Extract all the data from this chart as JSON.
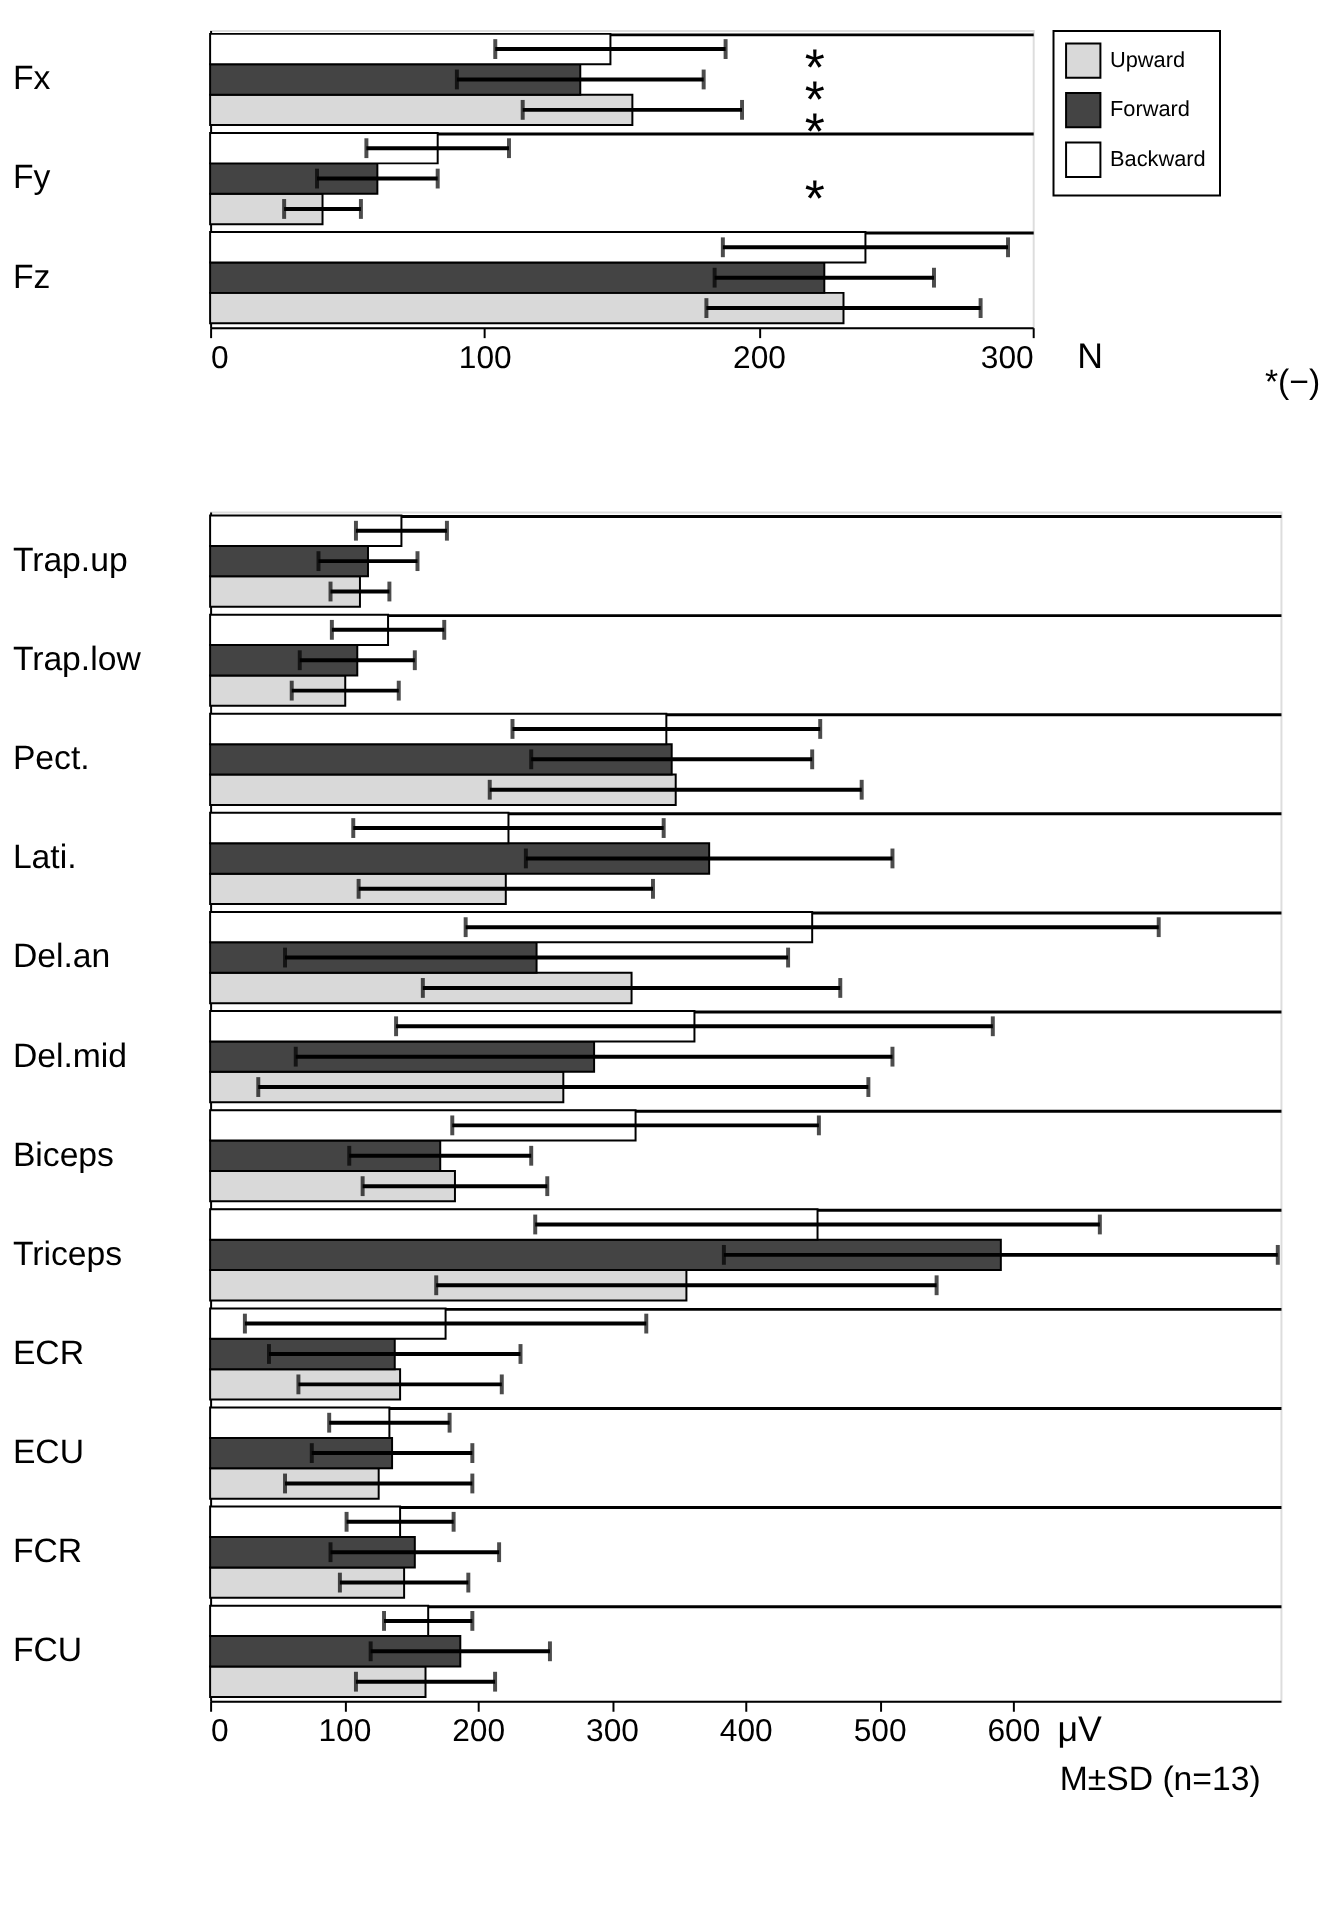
{
  "chart_data": [
    {
      "type": "bar",
      "orientation": "horizontal",
      "categories": [
        "Fx",
        "Fy",
        "Fz"
      ],
      "xlabel": "N",
      "xlim": [
        0,
        300
      ],
      "xticks": [
        0,
        100,
        200,
        300
      ],
      "grid": "y",
      "legend": "top right",
      "series": [
        {
          "name": "Upward",
          "color": "#d9d9d9",
          "values": [
            154,
            41,
            231
          ],
          "errors": [
            40,
            14,
            50
          ]
        },
        {
          "name": "Forward",
          "color": "#444444",
          "values": [
            135,
            61,
            224
          ],
          "errors": [
            45,
            22,
            40
          ]
        },
        {
          "name": "Backward",
          "color": "#ffffff",
          "values": [
            146,
            83,
            239
          ],
          "errors": [
            42,
            26,
            52
          ]
        }
      ],
      "annotations": [
        "*",
        "*",
        "*",
        "*",
        "*(−)"
      ]
    },
    {
      "type": "bar",
      "orientation": "horizontal",
      "categories": [
        "Trap.up",
        "Trap.low",
        "Pect.",
        "Lati.",
        "Del.an",
        "Del.mid",
        "Biceps",
        "Triceps",
        "ECR",
        "ECU",
        "FCR",
        "FCU"
      ],
      "xlabel": "μV",
      "xlim": [
        0,
        800
      ],
      "xticks": [
        0,
        100,
        200,
        300,
        400,
        500,
        600
      ],
      "grid": "y",
      "legend": false,
      "series": [
        {
          "name": "Upward",
          "color": "#d9d9d9",
          "values": [
            112,
            101,
            348,
            221,
            315,
            264,
            183,
            356,
            142,
            126,
            145,
            161
          ],
          "errors": [
            22,
            40,
            139,
            110,
            156,
            228,
            69,
            187,
            76,
            70,
            48,
            52
          ]
        },
        {
          "name": "Forward",
          "color": "#444444",
          "values": [
            118,
            110,
            345,
            373,
            244,
            287,
            172,
            591,
            138,
            136,
            153,
            187
          ],
          "errors": [
            37,
            43,
            105,
            137,
            188,
            223,
            68,
            207,
            94,
            60,
            63,
            67
          ]
        },
        {
          "name": "Backward",
          "color": "#ffffff",
          "values": [
            143,
            133,
            341,
            223,
            450,
            362,
            318,
            454,
            176,
            134,
            142,
            163
          ],
          "errors": [
            34,
            42,
            115,
            116,
            259,
            223,
            137,
            211,
            150,
            45,
            40,
            33
          ]
        }
      ],
      "annotations": [
        "M±SD (n=13)"
      ]
    }
  ]
}
